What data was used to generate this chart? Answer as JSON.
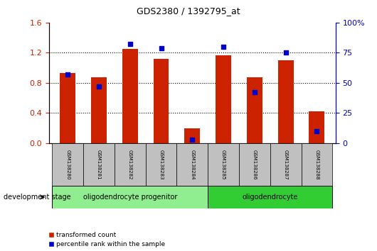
{
  "title": "GDS2380 / 1392795_at",
  "samples": [
    "GSM138280",
    "GSM138281",
    "GSM138282",
    "GSM138283",
    "GSM138284",
    "GSM138285",
    "GSM138286",
    "GSM138287",
    "GSM138288"
  ],
  "red_values": [
    0.93,
    0.87,
    1.25,
    1.12,
    0.2,
    1.17,
    0.87,
    1.1,
    0.42
  ],
  "blue_values_pct": [
    57,
    47,
    82,
    79,
    3,
    80,
    42,
    75,
    10
  ],
  "ylim_left": [
    0,
    1.6
  ],
  "ylim_right": [
    0,
    100
  ],
  "yticks_left": [
    0,
    0.4,
    0.8,
    1.2,
    1.6
  ],
  "yticks_right": [
    0,
    25,
    50,
    75,
    100
  ],
  "groups": [
    {
      "label": "oligodendrocyte progenitor",
      "start": 0,
      "end": 4,
      "color": "#90EE90"
    },
    {
      "label": "oligodendrocyte",
      "start": 5,
      "end": 8,
      "color": "#32CD32"
    }
  ],
  "bar_color": "#CC2200",
  "dot_color": "#0000CC",
  "bg_color": "#C0C0C0",
  "plot_bg": "#FFFFFF",
  "legend_red": "transformed count",
  "legend_blue": "percentile rank within the sample",
  "dev_stage_label": "development stage",
  "bar_width": 0.5
}
